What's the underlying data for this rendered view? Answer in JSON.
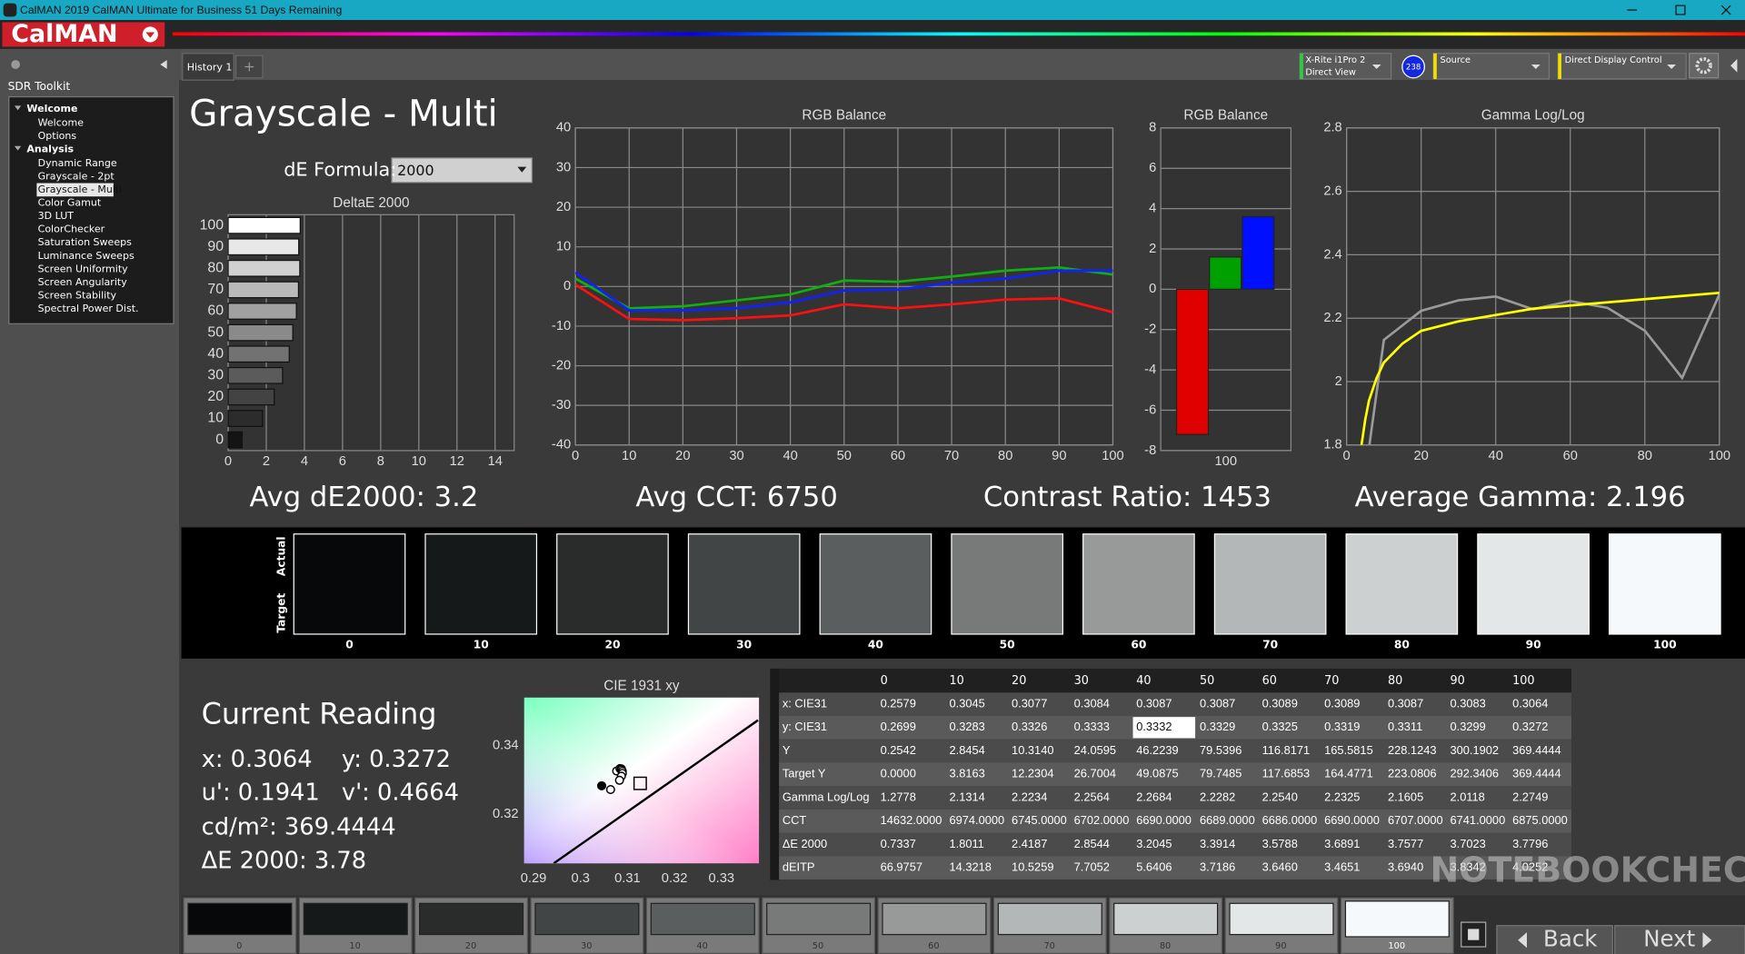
{
  "window": {
    "title": "CalMAN 2019 CalMAN Ultimate for Business 51 Days Remaining",
    "logo": "CalMAN"
  },
  "sidebar": {
    "header": "SDR Toolkit",
    "groups": [
      {
        "label": "Welcome",
        "items": [
          {
            "label": "Welcome"
          },
          {
            "label": "Options"
          }
        ]
      },
      {
        "label": "Analysis",
        "items": [
          {
            "label": "Dynamic Range"
          },
          {
            "label": "Grayscale - 2pt"
          },
          {
            "label": "Grayscale - Multi",
            "selected": true
          },
          {
            "label": "Color Gamut"
          },
          {
            "label": "3D LUT"
          },
          {
            "label": "ColorChecker"
          },
          {
            "label": "Saturation Sweeps"
          },
          {
            "label": "Luminance Sweeps"
          },
          {
            "label": "Screen Uniformity"
          },
          {
            "label": "Screen Angularity"
          },
          {
            "label": "Screen Stability"
          },
          {
            "label": "Spectral Power Dist."
          }
        ]
      }
    ]
  },
  "tabs": [
    "History 1"
  ],
  "toolbar": {
    "meter": "X-Rite i1Pro 2",
    "meter_mode": "Direct View",
    "badge": "238",
    "source": "Source",
    "display": "Direct Display Control"
  },
  "page": {
    "title": "Grayscale - Multi",
    "de_formula_label": "dE Formula:",
    "de_formula": "2000"
  },
  "chart_data": [
    {
      "type": "bar",
      "orientation": "horizontal",
      "title": "DeltaE 2000",
      "categories": [
        "0",
        "10",
        "20",
        "30",
        "40",
        "50",
        "60",
        "70",
        "80",
        "90",
        "100"
      ],
      "values": [
        0.7337,
        1.8011,
        2.4187,
        2.8544,
        3.2045,
        3.3914,
        3.5788,
        3.6891,
        3.7577,
        3.7023,
        3.7796
      ],
      "xlim": [
        0,
        15
      ],
      "xticks": [
        0,
        2,
        4,
        6,
        8,
        10,
        12,
        14
      ],
      "grid": true
    },
    {
      "type": "line",
      "title": "RGB Balance",
      "x": [
        0,
        10,
        20,
        30,
        40,
        50,
        60,
        70,
        80,
        90,
        100
      ],
      "series": [
        {
          "color": "#ff1010",
          "values": [
            0.5,
            -8.2,
            -8.5,
            -8,
            -7.3,
            -4.5,
            -5.5,
            -4.5,
            -3.3,
            -3,
            -6.5
          ]
        },
        {
          "color": "#10b010",
          "values": [
            2,
            -5.5,
            -5,
            -3.5,
            -2,
            1.5,
            1.2,
            2.5,
            4,
            4.8,
            3
          ]
        },
        {
          "color": "#1020ff",
          "values": [
            3.5,
            -6,
            -6,
            -5.5,
            -4,
            -1,
            -0.8,
            1,
            2,
            4,
            4
          ]
        }
      ],
      "xlim": [
        0,
        100
      ],
      "xticks": [
        0,
        10,
        20,
        30,
        40,
        50,
        60,
        70,
        80,
        90,
        100
      ],
      "ylim": [
        -40,
        40
      ],
      "yticks": [
        -40,
        -30,
        -20,
        -10,
        0,
        10,
        20,
        30,
        40
      ],
      "grid": true
    },
    {
      "type": "bar",
      "title": "RGB Balance",
      "categories": [
        "100"
      ],
      "series": [
        {
          "color": "#e00000",
          "values": [
            -7.2
          ]
        },
        {
          "color": "#00a000",
          "values": [
            1.6
          ]
        },
        {
          "color": "#0010ff",
          "values": [
            3.6
          ]
        }
      ],
      "ylim": [
        -8,
        8
      ],
      "yticks": [
        -8,
        -6,
        -4,
        -2,
        0,
        2,
        4,
        6,
        8
      ],
      "grid": true
    },
    {
      "type": "line",
      "title": "Gamma Log/Log",
      "series": [
        {
          "color": "#9a9a9a",
          "x": [
            0,
            10,
            20,
            30,
            40,
            50,
            60,
            70,
            80,
            90,
            100
          ],
          "values": [
            1.2778,
            2.1314,
            2.2234,
            2.2564,
            2.2684,
            2.2282,
            2.254,
            2.2325,
            2.1605,
            2.0118,
            2.2749
          ]
        },
        {
          "color": "#ffff00",
          "x": [
            4,
            5,
            6,
            8,
            10,
            15,
            20,
            30,
            40,
            50,
            60,
            70,
            80,
            90,
            100
          ],
          "values": [
            1.8,
            1.88,
            1.94,
            2.01,
            2.06,
            2.12,
            2.16,
            2.19,
            2.21,
            2.23,
            2.24,
            2.25,
            2.26,
            2.27,
            2.28
          ]
        }
      ],
      "xlim": [
        0,
        100
      ],
      "xticks": [
        0,
        20,
        40,
        60,
        80,
        100
      ],
      "ylim": [
        1.8,
        2.8
      ],
      "yticks": [
        1.8,
        2,
        2.2,
        2.4,
        2.6,
        2.8
      ],
      "grid": true
    },
    {
      "type": "scatter",
      "title": "CIE 1931 xy",
      "series": [
        {
          "marker": "circle",
          "x": [
            0.3045,
            0.3077,
            0.3084,
            0.3087,
            0.3087,
            0.3089,
            0.3089,
            0.3087,
            0.3083,
            0.3064
          ],
          "values": [
            0.3283,
            0.3326,
            0.3333,
            0.3332,
            0.3329,
            0.3325,
            0.3319,
            0.3311,
            0.3299,
            0.3272
          ]
        },
        {
          "marker": "square",
          "x": [
            0.3127
          ],
          "values": [
            0.329
          ]
        },
        {
          "marker": "line",
          "x": [
            0.2943,
            0.3378
          ],
          "values": [
            0.3057,
            0.3474
          ]
        }
      ],
      "xlim": [
        0.288,
        0.338
      ],
      "xticks": [
        0.29,
        0.3,
        0.31,
        0.32,
        0.33
      ],
      "ylim": [
        0.3057,
        0.354
      ],
      "yticks": [
        0.32,
        0.34
      ]
    }
  ],
  "summary": [
    "Avg dE2000: 3.2",
    "Avg CCT: 6750",
    "Contrast Ratio: 1453",
    "Average Gamma: 2.196"
  ],
  "swatches": {
    "actual_label": "Actual",
    "target_label": "Target",
    "labels": [
      "0",
      "10",
      "20",
      "30",
      "40",
      "50",
      "60",
      "70",
      "80",
      "90",
      "100"
    ],
    "colors": [
      "#07080a",
      "#16191a",
      "#2a2c2c",
      "#414545",
      "#5b5e5e",
      "#787a7a",
      "#989a9a",
      "#b4b7b7",
      "#cdd0d0",
      "#e4e7e8",
      "#f5f9fb"
    ]
  },
  "current_reading": {
    "title": "Current Reading",
    "x": "x: 0.3064",
    "y": "y: 0.3272",
    "u": "u': 0.1941",
    "v": "v': 0.4664",
    "lum": "cd/m²: 369.4444",
    "de": "ΔE 2000: 3.78"
  },
  "table": {
    "header": [
      "0",
      "10",
      "20",
      "30",
      "40",
      "50",
      "60",
      "70",
      "80",
      "90",
      "100"
    ],
    "selected_cell": {
      "row": 1,
      "col": 5
    },
    "rows": [
      [
        "x: CIE31",
        "0.2579",
        "0.3045",
        "0.3077",
        "0.3084",
        "0.3087",
        "0.3087",
        "0.3089",
        "0.3089",
        "0.3087",
        "0.3083",
        "0.3064"
      ],
      [
        "y: CIE31",
        "0.2699",
        "0.3283",
        "0.3326",
        "0.3333",
        "0.3332",
        "0.3329",
        "0.3325",
        "0.3319",
        "0.3311",
        "0.3299",
        "0.3272"
      ],
      [
        "Y",
        "0.2542",
        "2.8454",
        "10.3140",
        "24.0595",
        "46.2239",
        "79.5396",
        "116.8171",
        "165.5815",
        "228.1243",
        "300.1902",
        "369.4444"
      ],
      [
        "Target Y",
        "0.0000",
        "3.8163",
        "12.2304",
        "26.7004",
        "49.0875",
        "79.7485",
        "117.6853",
        "164.4771",
        "223.0806",
        "292.3406",
        "369.4444"
      ],
      [
        "Gamma Log/Log",
        "1.2778",
        "2.1314",
        "2.2234",
        "2.2564",
        "2.2684",
        "2.2282",
        "2.2540",
        "2.2325",
        "2.1605",
        "2.0118",
        "2.2749"
      ],
      [
        "CCT",
        "14632.0000",
        "6974.0000",
        "6745.0000",
        "6702.0000",
        "6690.0000",
        "6689.0000",
        "6686.0000",
        "6690.0000",
        "6707.0000",
        "6741.0000",
        "6875.0000"
      ],
      [
        "ΔE 2000",
        "0.7337",
        "1.8011",
        "2.4187",
        "2.8544",
        "3.2045",
        "3.3914",
        "3.5788",
        "3.6891",
        "3.7577",
        "3.7023",
        "3.7796"
      ],
      [
        "dEITP",
        "66.9757",
        "14.3218",
        "10.5259",
        "7.7052",
        "5.6406",
        "3.7186",
        "3.6460",
        "3.4651",
        "3.6940",
        "3.8342",
        "4.0252"
      ]
    ]
  },
  "footer": {
    "labels": [
      "0",
      "10",
      "20",
      "30",
      "40",
      "50",
      "60",
      "70",
      "80",
      "90",
      "100"
    ],
    "back": "Back",
    "next": "Next"
  },
  "watermark": "NOTEBOOKCHECK"
}
